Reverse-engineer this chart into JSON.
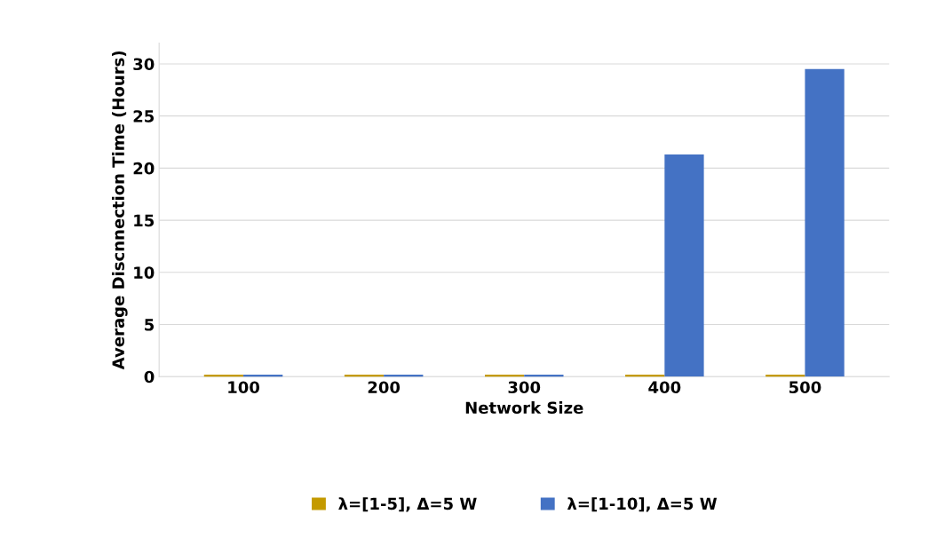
{
  "chart_data": {
    "type": "bar",
    "xlabel": "Network Size",
    "ylabel": "Average Discnnection Time (Hours)",
    "categories": [
      "100",
      "200",
      "300",
      "400",
      "500"
    ],
    "series": [
      {
        "name": "λ=[1-5], Δ=5 W",
        "color": "#c49a00",
        "values": [
          0,
          0,
          0,
          0,
          0
        ]
      },
      {
        "name": "λ=[1-10], Δ=5 W",
        "color": "#4472c4",
        "values": [
          0,
          0,
          0,
          21.3,
          29.5
        ]
      }
    ],
    "ylim": [
      0,
      32
    ],
    "yticks": [
      0,
      5,
      10,
      15,
      20,
      25,
      30
    ],
    "grid": "y",
    "legend": "bottom"
  }
}
